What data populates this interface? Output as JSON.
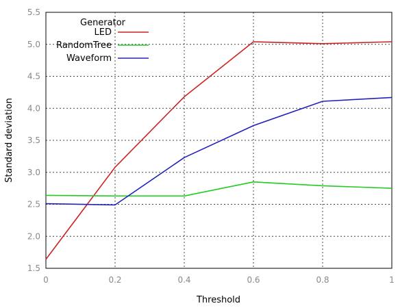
{
  "chart_data": {
    "type": "line",
    "title": "",
    "xlabel": "Threshold",
    "ylabel": "Standard deviation",
    "xlim": [
      0,
      1
    ],
    "ylim": [
      1.5,
      5.5
    ],
    "x_ticks": [
      "0",
      "0.2",
      "0.4",
      "0.6",
      "0.8",
      "1"
    ],
    "y_ticks": [
      "1.5",
      "2.0",
      "2.5",
      "3.0",
      "3.5",
      "4.0",
      "4.5",
      "5.0",
      "5.5"
    ],
    "grid": true,
    "legend": {
      "title": "Generator",
      "placement": "top-left"
    },
    "x": [
      0,
      0.2,
      0.4,
      0.6,
      0.8,
      1.0
    ],
    "series": [
      {
        "name": "LED",
        "color": "#cc2222",
        "values": [
          1.64,
          3.08,
          4.18,
          5.04,
          5.01,
          5.04
        ]
      },
      {
        "name": "RandomTree",
        "color": "#22cc22",
        "values": [
          2.64,
          2.63,
          2.63,
          2.85,
          2.79,
          2.75
        ]
      },
      {
        "name": "Waveform",
        "color": "#2222bb",
        "values": [
          2.51,
          2.49,
          3.23,
          3.73,
          4.11,
          4.17
        ]
      }
    ]
  }
}
